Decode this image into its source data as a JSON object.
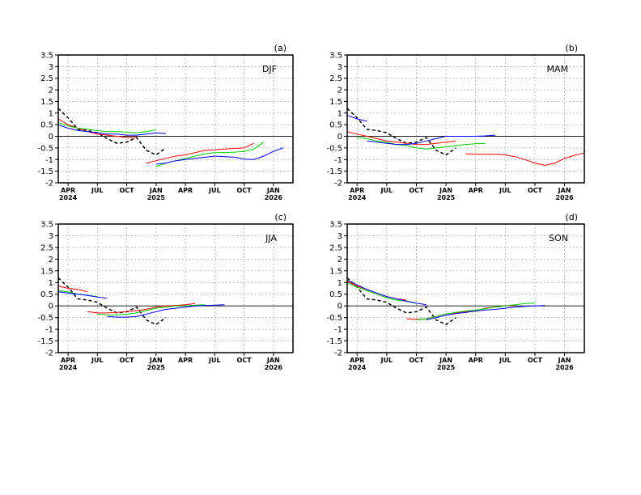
{
  "chart_data": [
    {
      "type": "line",
      "panel_label": "(a)",
      "season": "DJF",
      "ylim": [
        -2,
        3.5
      ],
      "yticks": [
        "-2",
        "-1.5",
        "-1",
        "-0.5",
        "0",
        "0.5",
        "1",
        "1.5",
        "2",
        "2.5",
        "3",
        "3.5"
      ],
      "xticks": [
        {
          "label": "APR",
          "sub": "2024"
        },
        {
          "label": "JUL",
          "sub": ""
        },
        {
          "label": "OCT",
          "sub": ""
        },
        {
          "label": "JAN",
          "sub": "2025"
        },
        {
          "label": "APR",
          "sub": ""
        },
        {
          "label": "JUL",
          "sub": ""
        },
        {
          "label": "OCT",
          "sub": ""
        },
        {
          "label": "JAN",
          "sub": "2026"
        }
      ],
      "grid": true,
      "series": [
        {
          "color": "#000000",
          "dash": true,
          "x": [
            "2024-03",
            "2024-04",
            "2024-05",
            "2024-06",
            "2024-07",
            "2024-08",
            "2024-09",
            "2024-10",
            "2024-11",
            "2024-12",
            "2025-01",
            "2025-02"
          ],
          "values": [
            1.2,
            0.8,
            0.3,
            0.25,
            0.15,
            -0.1,
            -0.3,
            -0.25,
            -0.05,
            -0.6,
            -0.8,
            -0.5
          ]
        },
        {
          "color": "#ff0000",
          "x": [
            "2024-03",
            "2024-04",
            "2024-05",
            "2024-06",
            "2024-07",
            "2024-08",
            "2024-09",
            "2024-10",
            "2024-11"
          ],
          "values": [
            0.75,
            0.5,
            0.35,
            0.2,
            0.1,
            0.05,
            0.0,
            -0.05,
            -0.05
          ]
        },
        {
          "color": "#00cc00",
          "x": [
            "2024-03",
            "2024-04",
            "2024-05",
            "2024-06",
            "2024-07",
            "2024-08",
            "2024-09",
            "2024-10",
            "2024-11",
            "2024-12",
            "2025-01"
          ],
          "values": [
            0.6,
            0.45,
            0.35,
            0.3,
            0.25,
            0.2,
            0.2,
            0.18,
            0.15,
            0.2,
            0.28
          ]
        },
        {
          "color": "#0000ff",
          "x": [
            "2024-03",
            "2024-04",
            "2024-05",
            "2024-06",
            "2024-07",
            "2024-08",
            "2024-09",
            "2024-10",
            "2024-11",
            "2024-12",
            "2025-01",
            "2025-02"
          ],
          "values": [
            0.5,
            0.35,
            0.25,
            0.2,
            0.15,
            0.1,
            0.1,
            0.05,
            0.05,
            0.1,
            0.15,
            0.12
          ]
        },
        {
          "color": "#ff0000",
          "x": [
            "2024-12",
            "2025-01",
            "2025-02",
            "2025-03",
            "2025-04",
            "2025-05",
            "2025-06",
            "2025-07",
            "2025-08",
            "2025-09",
            "2025-10",
            "2025-11"
          ],
          "values": [
            -1.15,
            -1.05,
            -0.95,
            -0.85,
            -0.8,
            -0.7,
            -0.6,
            -0.58,
            -0.55,
            -0.52,
            -0.5,
            -0.3
          ]
        },
        {
          "color": "#00cc00",
          "x": [
            "2025-01",
            "2025-02",
            "2025-03",
            "2025-04",
            "2025-05",
            "2025-06",
            "2025-07",
            "2025-08",
            "2025-09",
            "2025-10",
            "2025-11",
            "2025-12"
          ],
          "values": [
            -1.3,
            -1.15,
            -1.05,
            -0.95,
            -0.85,
            -0.75,
            -0.7,
            -0.7,
            -0.68,
            -0.65,
            -0.55,
            -0.25
          ]
        },
        {
          "color": "#0000ff",
          "x": [
            "2025-01",
            "2025-02",
            "2025-03",
            "2025-04",
            "2025-05",
            "2025-06",
            "2025-07",
            "2025-08",
            "2025-09",
            "2025-10",
            "2025-11",
            "2025-12",
            "2026-01",
            "2026-02"
          ],
          "values": [
            -1.2,
            -1.15,
            -1.05,
            -1.0,
            -0.95,
            -0.9,
            -0.85,
            -0.88,
            -0.9,
            -0.98,
            -1.0,
            -0.85,
            -0.65,
            -0.5
          ]
        }
      ]
    },
    {
      "type": "line",
      "panel_label": "(b)",
      "season": "MAM",
      "ylim": [
        -2,
        3.5
      ],
      "yticks": [
        "-2",
        "-1.5",
        "-1",
        "-0.5",
        "0",
        "0.5",
        "1",
        "1.5",
        "2",
        "2.5",
        "3",
        "3.5"
      ],
      "xticks": [
        {
          "label": "APR",
          "sub": "2024"
        },
        {
          "label": "JUL",
          "sub": ""
        },
        {
          "label": "OCT",
          "sub": ""
        },
        {
          "label": "JAN",
          "sub": "2025"
        },
        {
          "label": "APR",
          "sub": ""
        },
        {
          "label": "JUL",
          "sub": ""
        },
        {
          "label": "OCT",
          "sub": ""
        },
        {
          "label": "JAN",
          "sub": "2026"
        }
      ],
      "grid": true,
      "series": [
        {
          "color": "#000000",
          "dash": true,
          "x": [
            "2024-03",
            "2024-04",
            "2024-05",
            "2024-06",
            "2024-07",
            "2024-08",
            "2024-09",
            "2024-10",
            "2024-11",
            "2024-12",
            "2025-01",
            "2025-02"
          ],
          "values": [
            1.2,
            0.8,
            0.3,
            0.25,
            0.15,
            -0.1,
            -0.3,
            -0.25,
            -0.05,
            -0.6,
            -0.8,
            -0.5
          ]
        },
        {
          "color": "#0000ff",
          "x": [
            "2024-03",
            "2024-04",
            "2024-05"
          ],
          "values": [
            0.9,
            0.75,
            0.65
          ]
        },
        {
          "color": "#ff0000",
          "x": [
            "2024-03",
            "2024-04",
            "2024-05",
            "2024-06",
            "2024-07",
            "2024-08",
            "2024-09",
            "2024-10",
            "2024-11",
            "2024-12",
            "2025-01",
            "2025-02"
          ],
          "values": [
            0.2,
            0.1,
            0.0,
            -0.1,
            -0.2,
            -0.25,
            -0.3,
            -0.35,
            -0.35,
            -0.3,
            -0.25,
            -0.2
          ]
        },
        {
          "color": "#00cc00",
          "x": [
            "2024-04",
            "2024-05",
            "2024-06",
            "2024-07",
            "2024-08",
            "2024-09",
            "2024-10",
            "2024-11",
            "2024-12",
            "2025-01",
            "2025-02",
            "2025-03",
            "2025-04",
            "2025-05"
          ],
          "values": [
            -0.05,
            -0.1,
            -0.2,
            -0.25,
            -0.35,
            -0.4,
            -0.5,
            -0.55,
            -0.5,
            -0.45,
            -0.4,
            -0.35,
            -0.32,
            -0.3
          ]
        },
        {
          "color": "#0000ff",
          "x": [
            "2024-05",
            "2024-06",
            "2024-07",
            "2024-08",
            "2024-09",
            "2024-10",
            "2024-11",
            "2024-12",
            "2025-01",
            "2025-02",
            "2025-03",
            "2025-04",
            "2025-05",
            "2025-06"
          ],
          "values": [
            -0.2,
            -0.25,
            -0.3,
            -0.35,
            -0.35,
            -0.3,
            -0.2,
            -0.1,
            0.0,
            0.0,
            0.0,
            0.0,
            0.02,
            0.05
          ]
        },
        {
          "color": "#ff0000",
          "x": [
            "2025-03",
            "2025-04",
            "2025-05",
            "2025-06",
            "2025-07",
            "2025-08",
            "2025-09",
            "2025-10",
            "2025-11",
            "2025-12",
            "2026-01",
            "2026-02",
            "2026-03"
          ],
          "values": [
            -0.75,
            -0.77,
            -0.77,
            -0.77,
            -0.8,
            -0.88,
            -1.0,
            -1.15,
            -1.25,
            -1.15,
            -0.95,
            -0.82,
            -0.72
          ]
        }
      ]
    },
    {
      "type": "line",
      "panel_label": "(c)",
      "season": "JJA",
      "ylim": [
        -2,
        3.5
      ],
      "yticks": [
        "-2",
        "-1.5",
        "-1",
        "-0.5",
        "0",
        "0.5",
        "1",
        "1.5",
        "2",
        "2.5",
        "3",
        "3.5"
      ],
      "xticks": [
        {
          "label": "APR",
          "sub": "2024"
        },
        {
          "label": "JUL",
          "sub": ""
        },
        {
          "label": "OCT",
          "sub": ""
        },
        {
          "label": "JAN",
          "sub": "2025"
        },
        {
          "label": "APR",
          "sub": ""
        },
        {
          "label": "JUL",
          "sub": ""
        },
        {
          "label": "OCT",
          "sub": ""
        },
        {
          "label": "JAN",
          "sub": "2026"
        }
      ],
      "grid": true,
      "series": [
        {
          "color": "#000000",
          "dash": true,
          "x": [
            "2024-03",
            "2024-04",
            "2024-05",
            "2024-06",
            "2024-07",
            "2024-08",
            "2024-09",
            "2024-10",
            "2024-11",
            "2024-12",
            "2025-01",
            "2025-02"
          ],
          "values": [
            1.2,
            0.8,
            0.3,
            0.25,
            0.15,
            -0.1,
            -0.3,
            -0.25,
            -0.05,
            -0.6,
            -0.8,
            -0.5
          ]
        },
        {
          "color": "#ff0000",
          "x": [
            "2024-03",
            "2024-04",
            "2024-05",
            "2024-06"
          ],
          "values": [
            0.85,
            0.75,
            0.7,
            0.6
          ]
        },
        {
          "color": "#00cc00",
          "x": [
            "2024-03",
            "2024-04",
            "2024-05",
            "2024-06",
            "2024-07"
          ],
          "values": [
            0.65,
            0.6,
            0.5,
            0.45,
            0.4
          ]
        },
        {
          "color": "#0000ff",
          "x": [
            "2024-03",
            "2024-04",
            "2024-05",
            "2024-06",
            "2024-07",
            "2024-08"
          ],
          "values": [
            0.6,
            0.55,
            0.5,
            0.45,
            0.38,
            0.32
          ]
        },
        {
          "color": "#ff0000",
          "x": [
            "2024-06",
            "2024-07",
            "2024-08",
            "2024-09",
            "2024-10",
            "2024-11",
            "2024-12",
            "2025-01",
            "2025-02",
            "2025-03",
            "2025-04",
            "2025-05"
          ],
          "values": [
            -0.25,
            -0.3,
            -0.3,
            -0.28,
            -0.25,
            -0.2,
            -0.15,
            -0.05,
            0.0,
            0.02,
            0.05,
            0.1
          ]
        },
        {
          "color": "#00cc00",
          "x": [
            "2024-07",
            "2024-08",
            "2024-09",
            "2024-10",
            "2024-11",
            "2024-12",
            "2025-01",
            "2025-02",
            "2025-03",
            "2025-04",
            "2025-05",
            "2025-06"
          ],
          "values": [
            -0.35,
            -0.38,
            -0.38,
            -0.36,
            -0.3,
            -0.2,
            -0.1,
            -0.05,
            0.0,
            0.0,
            0.03,
            0.05
          ]
        },
        {
          "color": "#0000ff",
          "x": [
            "2024-08",
            "2024-09",
            "2024-10",
            "2024-11",
            "2024-12",
            "2025-01",
            "2025-02",
            "2025-03",
            "2025-04",
            "2025-05",
            "2025-06",
            "2025-07",
            "2025-08"
          ],
          "values": [
            -0.45,
            -0.48,
            -0.48,
            -0.45,
            -0.35,
            -0.25,
            -0.15,
            -0.1,
            -0.05,
            0.0,
            0.02,
            0.03,
            0.05
          ]
        }
      ]
    },
    {
      "type": "line",
      "panel_label": "(d)",
      "season": "SON",
      "ylim": [
        -2,
        3.5
      ],
      "yticks": [
        "-2",
        "-1.5",
        "-1",
        "-0.5",
        "0",
        "0.5",
        "1",
        "1.5",
        "2",
        "2.5",
        "3",
        "3.5"
      ],
      "xticks": [
        {
          "label": "APR",
          "sub": "2024"
        },
        {
          "label": "JUL",
          "sub": ""
        },
        {
          "label": "OCT",
          "sub": ""
        },
        {
          "label": "JAN",
          "sub": "2025"
        },
        {
          "label": "APR",
          "sub": ""
        },
        {
          "label": "JUL",
          "sub": ""
        },
        {
          "label": "OCT",
          "sub": ""
        },
        {
          "label": "JAN",
          "sub": "2026"
        }
      ],
      "grid": true,
      "series": [
        {
          "color": "#000000",
          "dash": true,
          "x": [
            "2024-03",
            "2024-04",
            "2024-05",
            "2024-06",
            "2024-07",
            "2024-08",
            "2024-09",
            "2024-10",
            "2024-11",
            "2024-12",
            "2025-01",
            "2025-02"
          ],
          "values": [
            1.2,
            0.8,
            0.3,
            0.25,
            0.15,
            -0.1,
            -0.3,
            -0.25,
            -0.05,
            -0.6,
            -0.8,
            -0.5
          ]
        },
        {
          "color": "#ff0000",
          "x": [
            "2024-03",
            "2024-04",
            "2024-05",
            "2024-06",
            "2024-07",
            "2024-08",
            "2024-09"
          ],
          "values": [
            1.05,
            0.85,
            0.7,
            0.55,
            0.4,
            0.3,
            0.25
          ]
        },
        {
          "color": "#00cc00",
          "x": [
            "2024-03",
            "2024-04",
            "2024-05",
            "2024-06",
            "2024-07",
            "2024-08",
            "2024-09",
            "2024-10"
          ],
          "values": [
            1.0,
            0.8,
            0.65,
            0.5,
            0.35,
            0.25,
            0.2,
            0.1
          ]
        },
        {
          "color": "#0000ff",
          "x": [
            "2024-03",
            "2024-04",
            "2024-05",
            "2024-06",
            "2024-07",
            "2024-08",
            "2024-09",
            "2024-10",
            "2024-11"
          ],
          "values": [
            1.1,
            0.9,
            0.7,
            0.55,
            0.4,
            0.3,
            0.2,
            0.12,
            0.05
          ]
        },
        {
          "color": "#ff0000",
          "x": [
            "2024-09",
            "2024-10",
            "2024-11",
            "2024-12",
            "2025-01",
            "2025-02",
            "2025-03",
            "2025-04",
            "2025-05",
            "2025-06",
            "2025-07",
            "2025-08"
          ],
          "values": [
            -0.55,
            -0.58,
            -0.55,
            -0.45,
            -0.35,
            -0.3,
            -0.25,
            -0.2,
            -0.1,
            -0.05,
            0.0,
            0.02
          ]
        },
        {
          "color": "#00cc00",
          "x": [
            "2024-10",
            "2024-11",
            "2024-12",
            "2025-01",
            "2025-02",
            "2025-03",
            "2025-04",
            "2025-05",
            "2025-06",
            "2025-07",
            "2025-08",
            "2025-09",
            "2025-10"
          ],
          "values": [
            -0.6,
            -0.55,
            -0.45,
            -0.35,
            -0.28,
            -0.22,
            -0.18,
            -0.12,
            -0.05,
            0.0,
            0.05,
            0.1,
            0.12
          ]
        },
        {
          "color": "#0000ff",
          "x": [
            "2024-11",
            "2024-12",
            "2025-01",
            "2025-02",
            "2025-03",
            "2025-04",
            "2025-05",
            "2025-06",
            "2025-07",
            "2025-08",
            "2025-09",
            "2025-10",
            "2025-11"
          ],
          "values": [
            -0.6,
            -0.5,
            -0.4,
            -0.33,
            -0.28,
            -0.22,
            -0.18,
            -0.15,
            -0.1,
            -0.05,
            -0.02,
            0.0,
            0.02
          ]
        }
      ]
    }
  ]
}
